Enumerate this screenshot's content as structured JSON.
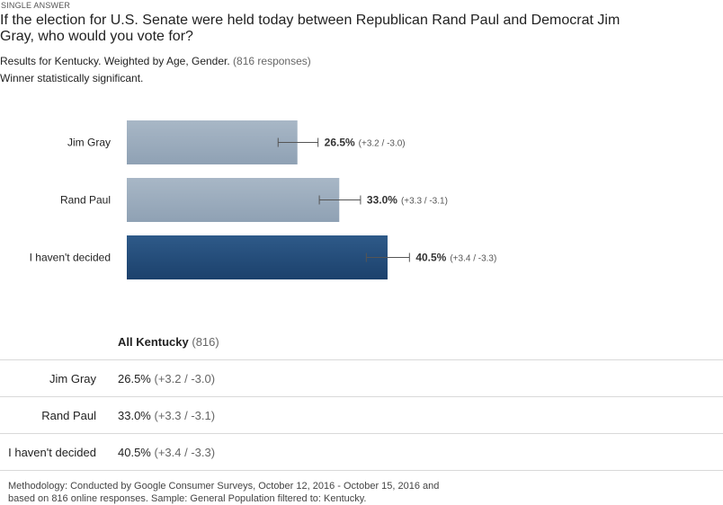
{
  "header": {
    "tag": "SINGLE ANSWER",
    "question": "If the election for U.S. Senate were held today between Republican Rand Paul and Democrat Jim Gray, who would you vote for?",
    "results_text": "Results for Kentucky. Weighted by Age, Gender.",
    "responses_text": "(816 responses)",
    "note": "Winner statistically significant."
  },
  "chart_data": {
    "type": "bar",
    "orientation": "horizontal",
    "categories": [
      "Jim Gray",
      "Rand Paul",
      "I haven't decided"
    ],
    "values": [
      26.5,
      33.0,
      40.5
    ],
    "error_plus": [
      3.2,
      3.3,
      3.4
    ],
    "error_minus": [
      3.0,
      3.1,
      3.3
    ],
    "value_labels": [
      "26.5%",
      "33.0%",
      "40.5%"
    ],
    "error_labels": [
      "(+3.2 / -3.0)",
      "(+3.3 / -3.1)",
      "(+3.4 / -3.3)"
    ],
    "highlight_index": 2,
    "xlim": [
      0,
      100
    ],
    "colors": {
      "bar": "#a2b2c1",
      "highlight": "#285281",
      "error": "#555555"
    }
  },
  "table": {
    "group_label": "All Kentucky",
    "group_count": "(816)",
    "rows": [
      {
        "label": "Jim Gray",
        "value": "26.5%",
        "range": "(+3.2 / -3.0)"
      },
      {
        "label": "Rand Paul",
        "value": "33.0%",
        "range": "(+3.3 / -3.1)"
      },
      {
        "label": "I haven't decided",
        "value": "40.5%",
        "range": "(+3.4 / -3.3)"
      }
    ]
  },
  "footer": {
    "methodology": "Methodology: Conducted by Google Consumer Surveys, October 12, 2016 - October 15, 2016 and based on 816 online responses. Sample: General Population filtered to: Kentucky."
  }
}
